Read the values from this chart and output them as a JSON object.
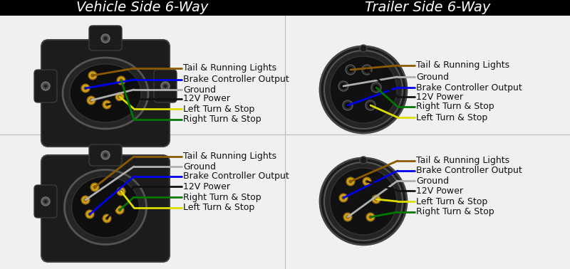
{
  "title_left": "Vehicle Side 6-Way",
  "title_right": "Trailer Side 6-Way",
  "bg_color": "#f0f0f0",
  "title_bg": "#000000",
  "title_fg": "#ffffff",
  "title_fontsize": 14,
  "label_fontsize": 9,
  "top_left_labels": [
    {
      "text": "Tail & Running Lights",
      "color": "#8B5A00"
    },
    {
      "text": "Brake Controller Output",
      "color": "#0000EE"
    },
    {
      "text": "Ground",
      "color": "#B0B0B0"
    },
    {
      "text": "12V Power",
      "color": "#111111"
    },
    {
      "text": "Left Turn & Stop",
      "color": "#DDDD00"
    },
    {
      "text": "Right Turn & Stop",
      "color": "#007700"
    }
  ],
  "top_right_labels": [
    {
      "text": "Tail & Running Lights",
      "color": "#8B5A00"
    },
    {
      "text": "Ground",
      "color": "#B0B0B0"
    },
    {
      "text": "Brake Controller Output",
      "color": "#0000EE"
    },
    {
      "text": "12V Power",
      "color": "#111111"
    },
    {
      "text": "Right Turn & Stop",
      "color": "#007700"
    },
    {
      "text": "Left Turn & Stop",
      "color": "#DDDD00"
    }
  ],
  "bot_left_labels": [
    {
      "text": "Tail & Running Lights",
      "color": "#8B5A00"
    },
    {
      "text": "Ground",
      "color": "#B0B0B0"
    },
    {
      "text": "Brake Controller Output",
      "color": "#0000EE"
    },
    {
      "text": "12V Power",
      "color": "#111111"
    },
    {
      "text": "Right Turn & Stop",
      "color": "#007700"
    },
    {
      "text": "Left Turn & Stop",
      "color": "#DDDD00"
    }
  ],
  "bot_right_labels": [
    {
      "text": "Tail & Running Lights",
      "color": "#8B5A00"
    },
    {
      "text": "Brake Controller Output",
      "color": "#0000EE"
    },
    {
      "text": "Ground",
      "color": "#B0B0B0"
    },
    {
      "text": "12V Power",
      "color": "#111111"
    },
    {
      "text": "Left Turn & Stop",
      "color": "#DDDD00"
    },
    {
      "text": "Right Turn & Stop",
      "color": "#007700"
    }
  ]
}
